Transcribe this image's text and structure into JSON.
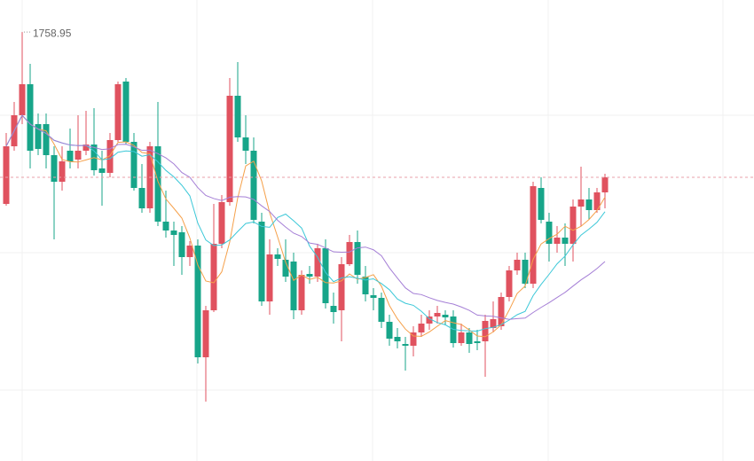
{
  "chart_data": {
    "type": "candlestick",
    "up_color": "#e0525f",
    "down_color": "#17a589",
    "ylim": [
      1517,
      1777
    ],
    "grid_y": [
      1712,
      1634.5,
      1557
    ],
    "annotation": {
      "text": "1758.95",
      "value": 1758.95
    },
    "moving_averages": [
      {
        "period": 5,
        "color": "#f5a04a"
      },
      {
        "period": 10,
        "color": "#3cc8d8"
      },
      {
        "period": 20,
        "color": "#a57fd6"
      }
    ],
    "open": [
      1662,
      1694.5,
      1712,
      1729.5,
      1707,
      1707,
      1689.5,
      1674.5,
      1692,
      1687,
      1692,
      1695.5,
      1682,
      1679.5,
      1698,
      1731,
      1697,
      1671,
      1659.5,
      1694.5,
      1652,
      1647,
      1646,
      1632,
      1638.5,
      1575.5,
      1602,
      1639.5,
      1663,
      1723,
      1699.5,
      1692,
      1652,
      1607,
      1633.5,
      1630.5,
      1629.5,
      1602,
      1622.5,
      1621,
      1637,
      1604.5,
      1602,
      1628,
      1640.5,
      1621,
      1610.5,
      1609,
      1595.5,
      1587,
      1583,
      1582,
      1589.5,
      1594.5,
      1598.5,
      1599.5,
      1598.5,
      1583.5,
      1589.5,
      1584.5,
      1584.5,
      1592,
      1593,
      1609.5,
      1624.5,
      1630.5,
      1617,
      1671,
      1652,
      1639.5,
      1643,
      1639.5,
      1660.5,
      1664.5,
      1658.5,
      1668.5
    ],
    "high": [
      1702,
      1719.5,
      1758.95,
      1741,
      1713,
      1713,
      1694.5,
      1694.5,
      1704.5,
      1712,
      1714.5,
      1716,
      1692,
      1702,
      1731,
      1733,
      1702,
      1684.5,
      1697,
      1719.5,
      1669.5,
      1652,
      1649.5,
      1641,
      1642,
      1604.5,
      1662,
      1667,
      1733,
      1742,
      1712,
      1699.5,
      1657,
      1642,
      1637,
      1642,
      1634.5,
      1624.5,
      1627,
      1639.5,
      1642,
      1612,
      1632,
      1644.5,
      1647,
      1627,
      1614.5,
      1612,
      1599.5,
      1592,
      1587,
      1593,
      1599.5,
      1602,
      1604.5,
      1602,
      1602,
      1594.5,
      1592,
      1591,
      1599.5,
      1607,
      1612,
      1627,
      1634.5,
      1634.5,
      1674.5,
      1677,
      1657,
      1649.5,
      1651,
      1664.5,
      1683,
      1671,
      1671,
      1679
    ],
    "low": [
      1661,
      1692,
      1707,
      1682,
      1689.5,
      1682,
      1642,
      1669.5,
      1682,
      1682,
      1689.5,
      1678,
      1661,
      1677,
      1697,
      1695.5,
      1669.5,
      1657,
      1657,
      1649.5,
      1643,
      1627,
      1622,
      1627,
      1572,
      1550.5,
      1601,
      1637,
      1661,
      1697,
      1684.5,
      1651,
      1604.5,
      1599.5,
      1627,
      1618,
      1597,
      1599.5,
      1617,
      1618,
      1603,
      1594.5,
      1584.5,
      1627,
      1617,
      1607,
      1602,
      1592,
      1582,
      1580.5,
      1568,
      1576,
      1587,
      1591,
      1594.5,
      1593.5,
      1581,
      1582,
      1578,
      1579.5,
      1564.5,
      1589.5,
      1591,
      1607,
      1622,
      1614.5,
      1614.5,
      1651,
      1629.5,
      1634.5,
      1627,
      1629.5,
      1649.5,
      1653,
      1657,
      1659.5
    ],
    "close": [
      1694.5,
      1712,
      1729.5,
      1692,
      1693,
      1689.5,
      1674.5,
      1686,
      1686,
      1692,
      1695.5,
      1681,
      1679.5,
      1698,
      1729.5,
      1697,
      1671,
      1659.5,
      1694.5,
      1652,
      1647,
      1644.5,
      1632,
      1638.5,
      1575.5,
      1602,
      1639.5,
      1663,
      1723,
      1699.5,
      1692,
      1653,
      1607,
      1633.5,
      1631,
      1621,
      1602,
      1622,
      1621,
      1637,
      1606,
      1601,
      1628,
      1640.5,
      1622,
      1611,
      1609,
      1595.5,
      1586,
      1584.5,
      1582,
      1589.5,
      1594.5,
      1598.5,
      1600.5,
      1598,
      1583.5,
      1589.5,
      1583,
      1583.5,
      1596,
      1597,
      1609.5,
      1624.5,
      1630.5,
      1617,
      1672,
      1653,
      1639.5,
      1643,
      1639.5,
      1660.5,
      1664.5,
      1658.5,
      1668.5,
      1677
    ]
  }
}
